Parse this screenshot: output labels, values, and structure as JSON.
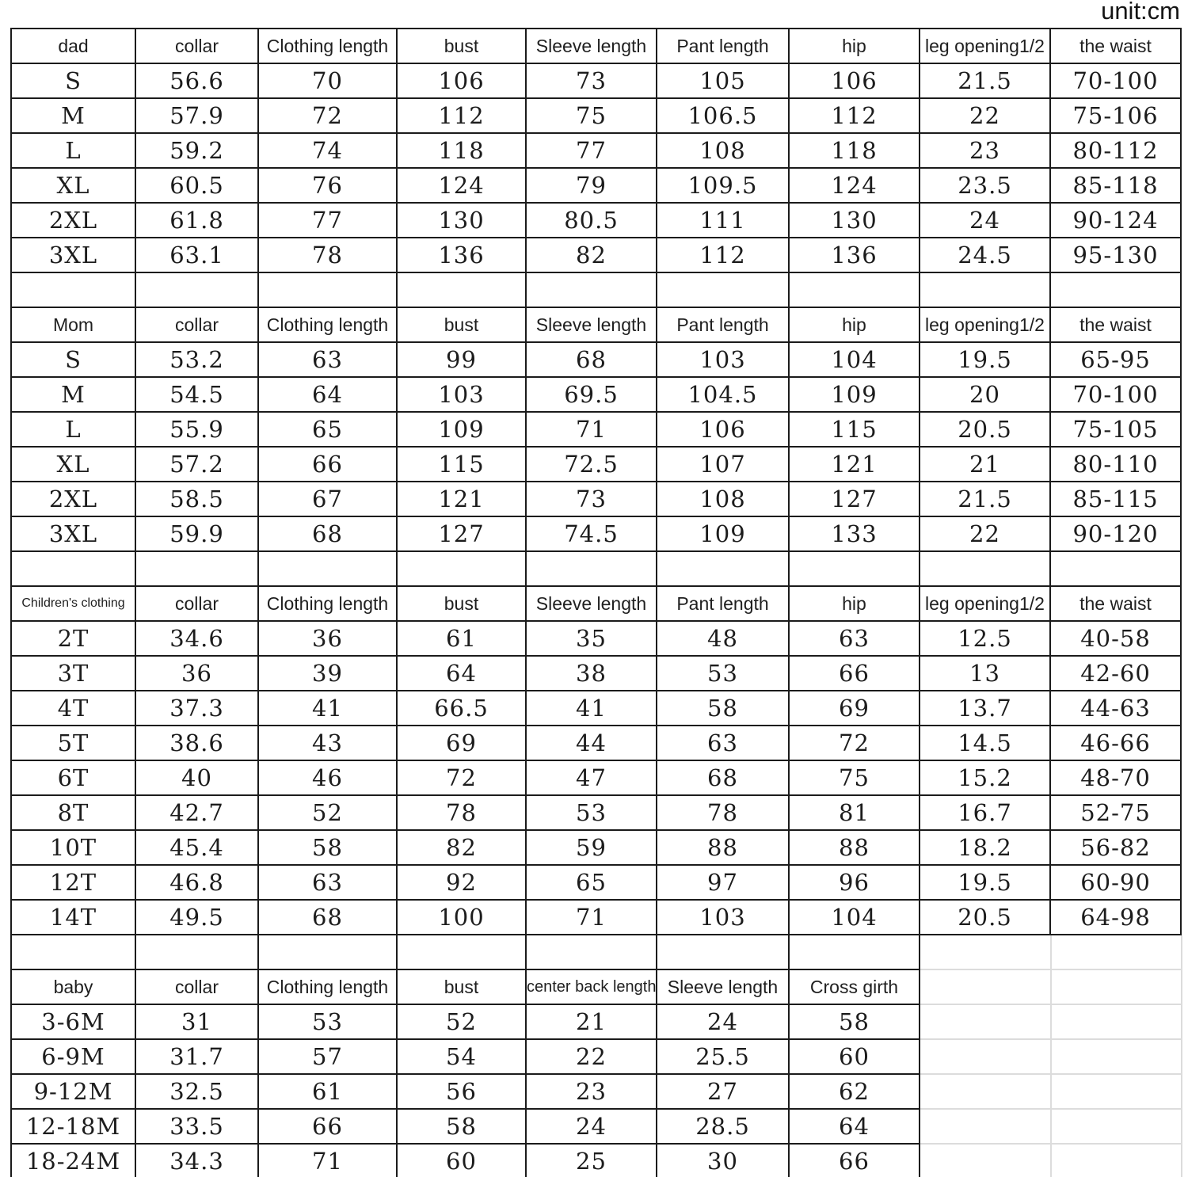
{
  "unit_label": "unit:cm",
  "colors": {
    "border": "#1b1b1b",
    "text": "#1c1c1c",
    "faint_grid": "#dcdcdc",
    "background": "#ffffff"
  },
  "tables": [
    {
      "name": "dad-size-table",
      "kind": "data",
      "columns": [
        "dad",
        "collar",
        "Clothing length",
        "bust",
        "Sleeve length",
        "Pant length",
        "hip",
        "leg opening1/2",
        "the waist"
      ],
      "rows": [
        [
          "S",
          "56.6",
          "70",
          "106",
          "73",
          "105",
          "106",
          "21.5",
          "70-100"
        ],
        [
          "M",
          "57.9",
          "72",
          "112",
          "75",
          "106.5",
          "112",
          "22",
          "75-106"
        ],
        [
          "L",
          "59.2",
          "74",
          "118",
          "77",
          "108",
          "118",
          "23",
          "80-112"
        ],
        [
          "XL",
          "60.5",
          "76",
          "124",
          "79",
          "109.5",
          "124",
          "23.5",
          "85-118"
        ],
        [
          "2XL",
          "61.8",
          "77",
          "130",
          "80.5",
          "111",
          "130",
          "24",
          "90-124"
        ],
        [
          "3XL",
          "63.1",
          "78",
          "136",
          "82",
          "112",
          "136",
          "24.5",
          "95-130"
        ]
      ]
    },
    {
      "name": "spacer-after-dad",
      "kind": "spacer",
      "col_count": 9
    },
    {
      "name": "mom-size-table",
      "kind": "data",
      "columns": [
        "Mom",
        "collar",
        "Clothing length",
        "bust",
        "Sleeve length",
        "Pant length",
        "hip",
        "leg opening1/2",
        "the waist"
      ],
      "rows": [
        [
          "S",
          "53.2",
          "63",
          "99",
          "68",
          "103",
          "104",
          "19.5",
          "65-95"
        ],
        [
          "M",
          "54.5",
          "64",
          "103",
          "69.5",
          "104.5",
          "109",
          "20",
          "70-100"
        ],
        [
          "L",
          "55.9",
          "65",
          "109",
          "71",
          "106",
          "115",
          "20.5",
          "75-105"
        ],
        [
          "XL",
          "57.2",
          "66",
          "115",
          "72.5",
          "107",
          "121",
          "21",
          "80-110"
        ],
        [
          "2XL",
          "58.5",
          "67",
          "121",
          "73",
          "108",
          "127",
          "21.5",
          "85-115"
        ],
        [
          "3XL",
          "59.9",
          "68",
          "127",
          "74.5",
          "109",
          "133",
          "22",
          "90-120"
        ]
      ]
    },
    {
      "name": "spacer-after-mom",
      "kind": "spacer",
      "col_count": 9
    },
    {
      "name": "children-size-table",
      "kind": "data",
      "columns": [
        "Children's clothing",
        "collar",
        "Clothing length",
        "bust",
        "Sleeve length",
        "Pant length",
        "hip",
        "leg opening1/2",
        "the waist"
      ],
      "rows": [
        [
          "2T",
          "34.6",
          "36",
          "61",
          "35",
          "48",
          "63",
          "12.5",
          "40-58"
        ],
        [
          "3T",
          "36",
          "39",
          "64",
          "38",
          "53",
          "66",
          "13",
          "42-60"
        ],
        [
          "4T",
          "37.3",
          "41",
          "66.5",
          "41",
          "58",
          "69",
          "13.7",
          "44-63"
        ],
        [
          "5T",
          "38.6",
          "43",
          "69",
          "44",
          "63",
          "72",
          "14.5",
          "46-66"
        ],
        [
          "6T",
          "40",
          "46",
          "72",
          "47",
          "68",
          "75",
          "15.2",
          "48-70"
        ],
        [
          "8T",
          "42.7",
          "52",
          "78",
          "53",
          "78",
          "81",
          "16.7",
          "52-75"
        ],
        [
          "10T",
          "45.4",
          "58",
          "82",
          "59",
          "88",
          "88",
          "18.2",
          "56-82"
        ],
        [
          "12T",
          "46.8",
          "63",
          "92",
          "65",
          "97",
          "96",
          "19.5",
          "60-90"
        ],
        [
          "14T",
          "49.5",
          "68",
          "100",
          "71",
          "103",
          "104",
          "20.5",
          "64-98"
        ]
      ]
    },
    {
      "name": "spacer-after-children",
      "kind": "spacer",
      "col_count": 7
    },
    {
      "name": "baby-size-table",
      "kind": "data",
      "columns": [
        "baby",
        "collar",
        "Clothing length",
        "bust",
        "center back length",
        "Sleeve length",
        "Cross girth"
      ],
      "rows": [
        [
          "3-6M",
          "31",
          "53",
          "52",
          "21",
          "24",
          "58"
        ],
        [
          "6-9M",
          "31.7",
          "57",
          "54",
          "22",
          "25.5",
          "60"
        ],
        [
          "9-12M",
          "32.5",
          "61",
          "56",
          "23",
          "27",
          "62"
        ],
        [
          "12-18M",
          "33.5",
          "66",
          "58",
          "24",
          "28.5",
          "64"
        ],
        [
          "18-24M",
          "34.3",
          "71",
          "60",
          "25",
          "30",
          "66"
        ]
      ]
    }
  ]
}
